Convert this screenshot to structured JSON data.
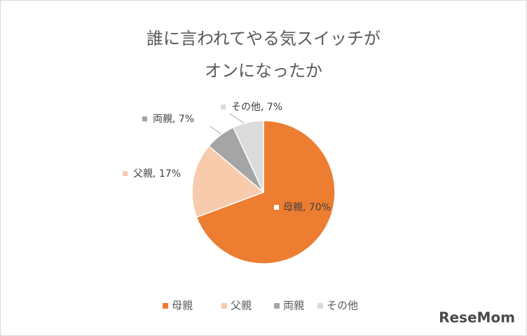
{
  "chart_data": {
    "type": "pie",
    "title": [
      "誰に言われてやる気スイッチが",
      "オンになったか"
    ],
    "categories": [
      "母親",
      "父親",
      "両親",
      "その他"
    ],
    "values": [
      70,
      17,
      7,
      7
    ],
    "value_labels": [
      "母親, 70%",
      "父親, 17%",
      "両親, 7%",
      "その他, 7%"
    ],
    "colors": [
      "#ED7D31",
      "#F8CBAD",
      "#A5A5A5",
      "#DBDBDB"
    ],
    "legend": "bottom",
    "watermark": "ReseMom"
  }
}
